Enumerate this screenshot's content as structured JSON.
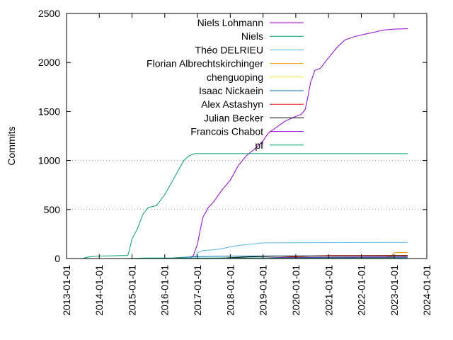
{
  "chart_data": {
    "type": "line",
    "xlabel": "",
    "ylabel": "Commits",
    "x_axis": "date",
    "xlim": [
      "2013-01-01",
      "2024-01-01"
    ],
    "ylim": [
      0,
      2500
    ],
    "x_ticks": [
      "2013-01-01",
      "2014-01-01",
      "2015-01-01",
      "2016-01-01",
      "2017-01-01",
      "2018-01-01",
      "2019-01-01",
      "2020-01-01",
      "2021-01-01",
      "2022-01-01",
      "2023-01-01",
      "2024-01-01"
    ],
    "y_ticks": [
      0,
      500,
      1000,
      1500,
      2000,
      2500
    ],
    "grid": "horizontal dotted at 500 and 1000",
    "legend_position": "top-left",
    "series": [
      {
        "name": "Niels Lohmann",
        "color": "#9400d3",
        "points": [
          [
            "2016-10-01",
            0
          ],
          [
            "2016-11-15",
            30
          ],
          [
            "2017-01-01",
            150
          ],
          [
            "2017-02-01",
            300
          ],
          [
            "2017-03-01",
            420
          ],
          [
            "2017-05-01",
            520
          ],
          [
            "2017-07-01",
            580
          ],
          [
            "2017-10-01",
            700
          ],
          [
            "2018-01-01",
            800
          ],
          [
            "2018-04-01",
            950
          ],
          [
            "2018-07-01",
            1050
          ],
          [
            "2018-10-01",
            1120
          ],
          [
            "2019-01-01",
            1200
          ],
          [
            "2019-03-01",
            1280
          ],
          [
            "2019-06-01",
            1340
          ],
          [
            "2019-09-01",
            1400
          ],
          [
            "2020-01-01",
            1450
          ],
          [
            "2020-03-01",
            1470
          ],
          [
            "2020-04-15",
            1520
          ],
          [
            "2020-05-15",
            1650
          ],
          [
            "2020-06-15",
            1800
          ],
          [
            "2020-08-01",
            1920
          ],
          [
            "2020-10-01",
            1940
          ],
          [
            "2021-01-01",
            2050
          ],
          [
            "2021-04-01",
            2150
          ],
          [
            "2021-07-01",
            2230
          ],
          [
            "2021-10-01",
            2260
          ],
          [
            "2022-01-01",
            2280
          ],
          [
            "2022-06-01",
            2310
          ],
          [
            "2022-09-01",
            2330
          ],
          [
            "2023-01-01",
            2340
          ],
          [
            "2023-06-01",
            2345
          ]
        ]
      },
      {
        "name": "Niels",
        "color": "#009e73",
        "points": [
          [
            "2013-07-01",
            0
          ],
          [
            "2013-08-01",
            10
          ],
          [
            "2013-10-01",
            20
          ],
          [
            "2014-01-01",
            25
          ],
          [
            "2014-06-01",
            28
          ],
          [
            "2014-09-01",
            30
          ],
          [
            "2014-11-15",
            30
          ],
          [
            "2014-12-01",
            80
          ],
          [
            "2015-01-01",
            200
          ],
          [
            "2015-03-01",
            300
          ],
          [
            "2015-05-01",
            450
          ],
          [
            "2015-07-01",
            520
          ],
          [
            "2015-10-01",
            540
          ],
          [
            "2016-01-01",
            650
          ],
          [
            "2016-03-01",
            750
          ],
          [
            "2016-06-01",
            900
          ],
          [
            "2016-08-01",
            1000
          ],
          [
            "2016-10-01",
            1050
          ],
          [
            "2016-12-01",
            1070
          ],
          [
            "2023-06-01",
            1070
          ]
        ]
      },
      {
        "name": "Théo DELRIEU",
        "color": "#56b4e9",
        "points": [
          [
            "2016-12-01",
            0
          ],
          [
            "2017-01-01",
            60
          ],
          [
            "2017-03-01",
            80
          ],
          [
            "2017-07-01",
            90
          ],
          [
            "2017-10-01",
            100
          ],
          [
            "2018-01-01",
            120
          ],
          [
            "2018-06-01",
            140
          ],
          [
            "2018-10-01",
            150
          ],
          [
            "2019-01-01",
            160
          ],
          [
            "2023-06-01",
            165
          ]
        ]
      },
      {
        "name": "Florian Albrechtskirchinger",
        "color": "#e69f00",
        "points": [
          [
            "2022-01-01",
            0
          ],
          [
            "2022-06-01",
            5
          ],
          [
            "2022-12-01",
            20
          ],
          [
            "2023-01-01",
            60
          ],
          [
            "2023-06-01",
            62
          ]
        ]
      },
      {
        "name": "chenguoping",
        "color": "#f0e442",
        "points": [
          [
            "2019-06-01",
            0
          ],
          [
            "2020-01-01",
            15
          ],
          [
            "2020-06-01",
            25
          ],
          [
            "2023-06-01",
            30
          ]
        ]
      },
      {
        "name": "Isaac Nickaein",
        "color": "#0072b2",
        "points": [
          [
            "2016-01-01",
            0
          ],
          [
            "2016-06-01",
            10
          ],
          [
            "2017-01-01",
            20
          ],
          [
            "2018-01-01",
            25
          ],
          [
            "2023-06-01",
            28
          ]
        ]
      },
      {
        "name": "Alex Astashyn",
        "color": "#e51e10",
        "points": [
          [
            "2019-01-01",
            0
          ],
          [
            "2020-01-01",
            20
          ],
          [
            "2021-01-01",
            30
          ],
          [
            "2023-06-01",
            32
          ]
        ]
      },
      {
        "name": "Julian Becker",
        "color": "#000000",
        "points": [
          [
            "2017-06-01",
            0
          ],
          [
            "2018-06-01",
            15
          ],
          [
            "2019-06-01",
            25
          ],
          [
            "2023-06-01",
            28
          ]
        ]
      },
      {
        "name": "Francois Chabot",
        "color": "#9400d3",
        "points": [
          [
            "2018-06-01",
            0
          ],
          [
            "2019-06-01",
            10
          ],
          [
            "2023-06-01",
            15
          ]
        ]
      },
      {
        "name": "pf",
        "color": "#009e73",
        "points": [
          [
            "2014-10-01",
            0
          ],
          [
            "2015-06-01",
            5
          ],
          [
            "2023-06-01",
            8
          ]
        ]
      }
    ]
  }
}
